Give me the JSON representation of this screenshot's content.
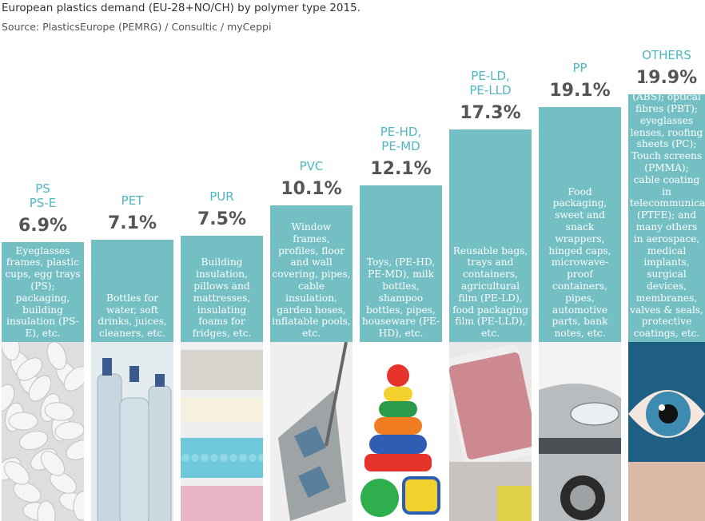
{
  "chart_data": {
    "type": "bar",
    "title": "European plastics demand (EU-28+NO/CH) by polymer type 2015.",
    "subtitle": "Source: PlasticsEurope (PEMRG) / Consultic / myCeppi",
    "unit": "%",
    "categories": [
      "PS\nPS-E",
      "PET",
      "PUR",
      "PVC",
      "PE-HD,\nPE-MD",
      "PE-LD,\nPE-LLD",
      "PP",
      "OTHERS"
    ],
    "values": [
      6.9,
      7.1,
      7.5,
      10.1,
      12.1,
      17.3,
      19.1,
      19.9
    ],
    "value_labels": [
      "6.9%",
      "7.1%",
      "7.5%",
      "10.1%",
      "12.1%",
      "17.3%",
      "19.1%",
      "19.9%"
    ],
    "descriptions": [
      "Eyeglasses frames, plastic cups, egg trays (PS); packaging, building insulation (PS-E), etc.",
      "Bottles for water, soft drinks, juices, cleaners, etc.",
      "Building insulation, pillows and mattresses, insulating foams for fridges, etc.",
      "Window frames, profiles, floor and wall covering, pipes, cable insulation, garden hoses, inflatable pools, etc.",
      "Toys, (PE-HD, PE-MD), milk bottles, shampoo bottles, pipes, houseware (PE-HD), etc.",
      "Reusable bags, trays and containers, agricultural film (PE-LD), food packaging film (PE-LLD), etc.",
      "Food packaging, sweet and snack wrappers, hinged caps, microwave-proof containers, pipes, automotive parts, bank notes, etc.",
      "Hub caps (ABS); optical fibres (PBT); eyeglasses lenses, roofing sheets (PC); Touch screens (PMMA); cable coating in telecommunications (PTFE); and many others in aerospace, medical implants, surgical devices, membranes, valves & seals, protective coatings, etc."
    ],
    "photos": [
      "packing-peanuts",
      "plastic-bottles",
      "foam-mattress",
      "window-profile",
      "stacking-toy",
      "meat-tray-film",
      "car-front",
      "eye-closeup"
    ],
    "colors": {
      "bar": "#74bfc4",
      "name": "#4fb7c2",
      "value": "#555555"
    }
  }
}
